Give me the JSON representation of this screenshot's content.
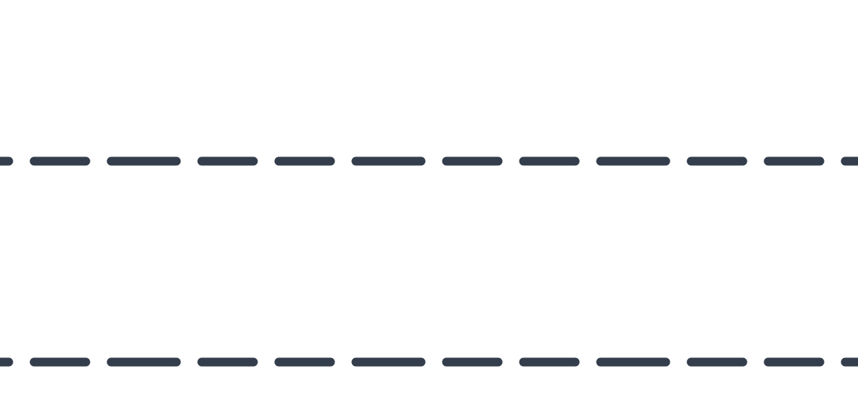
{
  "colors": {
    "background": "#ffffff",
    "dash": "#333d4b"
  },
  "dashed_lines": [
    {
      "name": "dashed-divider-top"
    },
    {
      "name": "dashed-divider-bottom"
    }
  ]
}
